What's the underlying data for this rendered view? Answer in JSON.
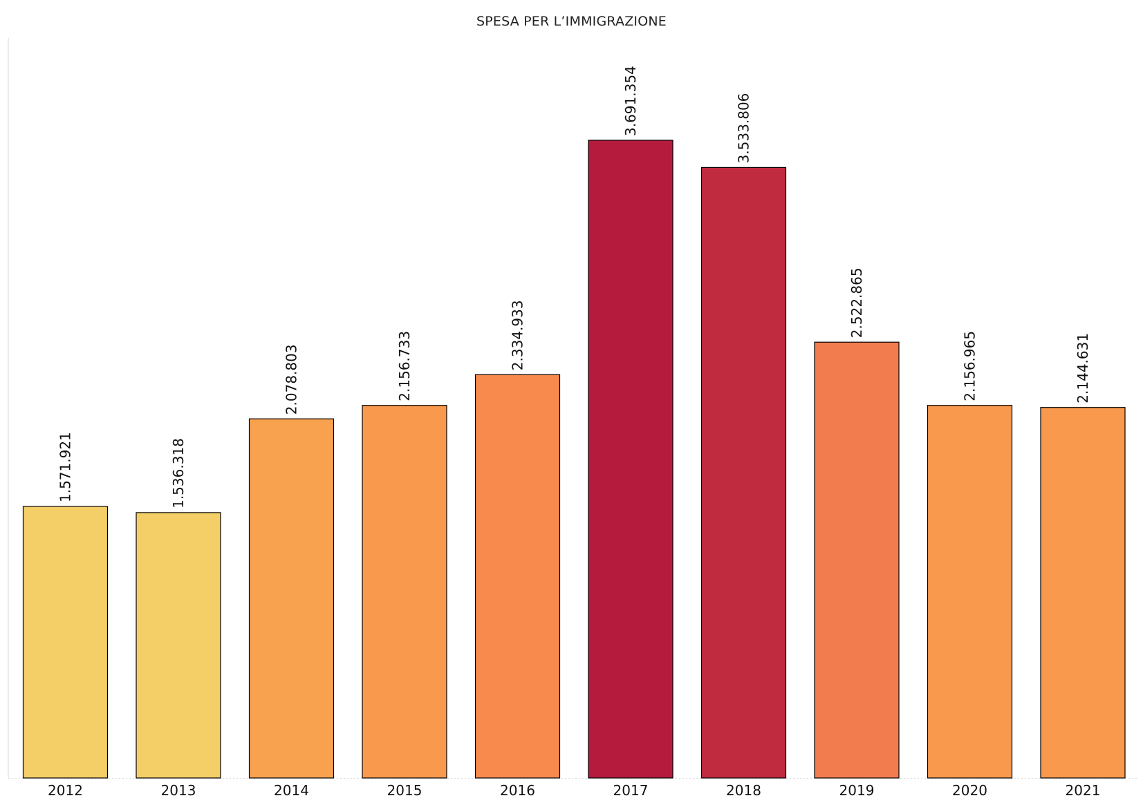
{
  "chart_data": {
    "type": "bar",
    "title": "SPESA PER L’IMMIGRAZIONE",
    "categories": [
      "2012",
      "2013",
      "2014",
      "2015",
      "2016",
      "2017",
      "2018",
      "2019",
      "2020",
      "2021"
    ],
    "values": [
      1571921,
      1536318,
      2078803,
      2156733,
      2334933,
      3691354,
      3533806,
      2522865,
      2156965,
      2144631
    ],
    "value_labels": [
      "1.571.921",
      "1.536.318",
      "2.078.803",
      "2.156.733",
      "2.334.933",
      "3.691.354",
      "3.533.806",
      "2.522.865",
      "2.156.965",
      "2.144.631"
    ],
    "colors": [
      "#f4cf67",
      "#f4cf67",
      "#f8a24f",
      "#f8994e",
      "#f88a4e",
      "#b41b3c",
      "#c12b3f",
      "#f27c4d",
      "#f8994e",
      "#f8994e"
    ],
    "xlabel": "",
    "ylabel": "",
    "ylim": [
      0,
      4000000
    ],
    "grid": false,
    "legend": "none"
  }
}
